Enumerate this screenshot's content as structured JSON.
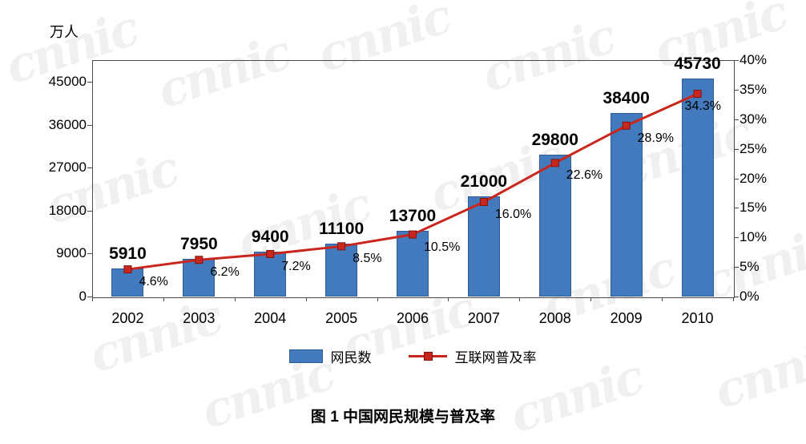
{
  "chart": {
    "unit_label": "万人",
    "title": "图 1 中国网民规模与普及率",
    "watermark_text": "cnnic",
    "legend": [
      {
        "label": "网民数",
        "type": "bar"
      },
      {
        "label": "互联网普及率",
        "type": "line"
      }
    ],
    "colors": {
      "bar_fill": "#4379BD",
      "bar_border": "#2F5C96",
      "line": "#C9261D",
      "marker_border": "#7E150D"
    }
  },
  "chart_data": {
    "type": "bar",
    "subtype": "combo-bar-line",
    "title": "图 1 中国网民规模与普及率",
    "categories": [
      "2002",
      "2003",
      "2004",
      "2005",
      "2006",
      "2007",
      "2008",
      "2009",
      "2010"
    ],
    "series": [
      {
        "name": "网民数",
        "type": "bar",
        "unit": "万人",
        "axis": "left",
        "values": [
          5910,
          7950,
          9400,
          11100,
          13700,
          21000,
          29800,
          38400,
          45730
        ]
      },
      {
        "name": "互联网普及率",
        "type": "line",
        "unit": "%",
        "axis": "right",
        "values": [
          4.6,
          6.2,
          7.2,
          8.5,
          10.5,
          16.0,
          22.6,
          28.9,
          34.3
        ]
      }
    ],
    "value_labels": [
      "5910",
      "7950",
      "9400",
      "11100",
      "13700",
      "21000",
      "29800",
      "38400",
      "45730"
    ],
    "pct_labels": [
      "4.6%",
      "6.2%",
      "7.2%",
      "8.5%",
      "10.5%",
      "16.0%",
      "22.6%",
      "28.9%",
      "34.3%"
    ],
    "left_axis": {
      "label": "万人",
      "ticks": [
        0,
        9000,
        18000,
        27000,
        36000,
        45000
      ],
      "max": 45000
    },
    "right_axis": {
      "ticks": [
        "0%",
        "5%",
        "10%",
        "15%",
        "20%",
        "25%",
        "30%",
        "35%",
        "40%"
      ],
      "max": 40
    },
    "grid": false,
    "legend_position": "bottom"
  }
}
